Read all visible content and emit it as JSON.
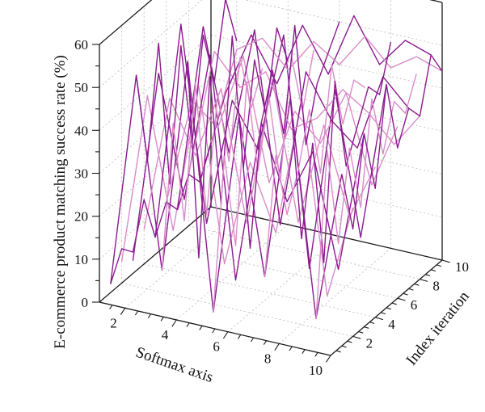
{
  "chart_data": {
    "type": "line",
    "subtype": "3d-line-surface",
    "title": "",
    "xlabel": "Softmax axis",
    "ylabel": "Index iteration",
    "zlabel": "E-commerce product matching success rate (%)",
    "xlim": [
      1,
      10
    ],
    "ylim": [
      0,
      10
    ],
    "zlim": [
      0,
      60
    ],
    "x_ticks": [
      2,
      4,
      6,
      8,
      10
    ],
    "y_ticks": [
      2,
      4,
      6,
      8,
      10
    ],
    "z_ticks": [
      0,
      10,
      20,
      30,
      40,
      50,
      60
    ],
    "grid": true,
    "legend": "none",
    "colors": {
      "dark": "#8b1a8f",
      "light": "#d98cc8",
      "edge": "#1a1a1a",
      "grid": "#b9b9b9"
    },
    "series": [
      {
        "color": "dark",
        "x": [
          1,
          2,
          3,
          4,
          5,
          6,
          7,
          8,
          9,
          10
        ],
        "y": [
          1,
          1,
          1,
          1,
          1,
          1,
          1,
          1,
          1,
          1
        ],
        "z": [
          2,
          52,
          8,
          58,
          1,
          48,
          12,
          55,
          5,
          40
        ]
      },
      {
        "color": "light",
        "x": [
          1,
          2,
          3,
          4,
          5,
          6,
          7,
          8,
          9,
          10
        ],
        "y": [
          2,
          2,
          2,
          2,
          2,
          2,
          2,
          2,
          2,
          2
        ],
        "z": [
          5,
          45,
          15,
          50,
          10,
          35,
          20,
          52,
          8,
          30
        ]
      },
      {
        "color": "dark",
        "x": [
          1,
          2,
          3,
          4,
          5,
          6,
          7,
          8,
          9,
          10
        ],
        "y": [
          3,
          3,
          3,
          3,
          3,
          3,
          3,
          3,
          3,
          3
        ],
        "z": [
          3,
          48,
          20,
          55,
          4,
          42,
          25,
          38,
          12,
          45
        ]
      },
      {
        "color": "light",
        "x": [
          1,
          2,
          3,
          4,
          5,
          6,
          7,
          8,
          9,
          10
        ],
        "y": [
          4,
          4,
          4,
          4,
          4,
          4,
          4,
          4,
          4,
          4
        ],
        "z": [
          8,
          40,
          28,
          45,
          15,
          50,
          18,
          42,
          22,
          35
        ]
      },
      {
        "color": "dark",
        "x": [
          1,
          2,
          3,
          4,
          5,
          6,
          7,
          8,
          9,
          10
        ],
        "y": [
          5,
          5,
          5,
          5,
          5,
          5,
          5,
          5,
          5,
          5
        ],
        "z": [
          4,
          55,
          10,
          40,
          30,
          58,
          5,
          48,
          15,
          52
        ]
      },
      {
        "color": "light",
        "x": [
          1,
          2,
          3,
          4,
          5,
          6,
          7,
          8,
          9,
          10
        ],
        "y": [
          6,
          6,
          6,
          6,
          6,
          6,
          6,
          6,
          6,
          6
        ],
        "z": [
          10,
          35,
          30,
          48,
          20,
          38,
          32,
          45,
          25,
          40
        ]
      },
      {
        "color": "dark",
        "x": [
          1,
          2,
          3,
          4,
          5,
          6,
          7,
          8,
          9,
          10
        ],
        "y": [
          7,
          7,
          7,
          7,
          7,
          7,
          7,
          7,
          7,
          7
        ],
        "z": [
          6,
          50,
          22,
          52,
          8,
          45,
          35,
          30,
          48,
          42
        ]
      },
      {
        "color": "light",
        "x": [
          1,
          2,
          3,
          4,
          5,
          6,
          7,
          8,
          9,
          10
        ],
        "y": [
          8,
          8,
          8,
          8,
          8,
          8,
          8,
          8,
          8,
          8
        ],
        "z": [
          12,
          42,
          35,
          40,
          28,
          32,
          40,
          36,
          30,
          38
        ]
      },
      {
        "color": "dark",
        "x": [
          1,
          2,
          3,
          4,
          5,
          6,
          7,
          8,
          9,
          10
        ],
        "y": [
          9,
          9,
          9,
          9,
          9,
          9,
          9,
          9,
          9,
          9
        ],
        "z": [
          8,
          30,
          45,
          35,
          50,
          40,
          55,
          45,
          52,
          50
        ]
      },
      {
        "color": "light",
        "x": [
          1,
          2,
          3,
          4,
          5,
          6,
          7,
          8,
          9,
          10
        ],
        "y": [
          10,
          10,
          10,
          10,
          10,
          10,
          10,
          10,
          10,
          10
        ],
        "z": [
          15,
          38,
          42,
          36,
          44,
          40,
          48,
          42,
          46,
          44
        ]
      },
      {
        "color": "dark",
        "x": [
          1,
          1,
          1,
          1,
          1,
          1,
          1,
          1,
          1,
          1
        ],
        "y": [
          1,
          2,
          3,
          4,
          5,
          6,
          7,
          8,
          9,
          10
        ],
        "z": [
          2,
          8,
          5,
          15,
          4,
          10,
          6,
          12,
          8,
          15
        ]
      },
      {
        "color": "dark",
        "x": [
          2,
          2,
          2,
          2,
          2,
          2,
          2,
          2,
          2,
          2
        ],
        "y": [
          1,
          2,
          3,
          4,
          5,
          6,
          7,
          8,
          9,
          10
        ],
        "z": [
          52,
          30,
          55,
          20,
          50,
          25,
          48,
          35,
          52,
          40
        ]
      },
      {
        "color": "light",
        "x": [
          3,
          3,
          3,
          3,
          3,
          3,
          3,
          3,
          3,
          3
        ],
        "y": [
          1,
          2,
          3,
          4,
          5,
          6,
          7,
          8,
          9,
          10
        ],
        "z": [
          8,
          40,
          15,
          45,
          12,
          38,
          20,
          42,
          28,
          35
        ]
      },
      {
        "color": "dark",
        "x": [
          4,
          4,
          4,
          4,
          4,
          4,
          4,
          4,
          4,
          4
        ],
        "y": [
          1,
          2,
          3,
          4,
          5,
          6,
          7,
          8,
          9,
          10
        ],
        "z": [
          58,
          10,
          50,
          18,
          55,
          22,
          45,
          30,
          48,
          38
        ]
      },
      {
        "color": "light",
        "x": [
          5,
          5,
          5,
          5,
          5,
          5,
          5,
          5,
          5,
          5
        ],
        "y": [
          1,
          2,
          3,
          4,
          5,
          6,
          7,
          8,
          9,
          10
        ],
        "z": [
          1,
          35,
          12,
          48,
          25,
          40,
          18,
          45,
          30,
          42
        ]
      },
      {
        "color": "dark",
        "x": [
          6,
          6,
          6,
          6,
          6,
          6,
          6,
          6,
          6,
          6
        ],
        "y": [
          1,
          2,
          3,
          4,
          5,
          6,
          7,
          8,
          9,
          10
        ],
        "z": [
          48,
          15,
          42,
          52,
          35,
          58,
          28,
          40,
          45,
          50
        ]
      },
      {
        "color": "light",
        "x": [
          7,
          7,
          7,
          7,
          7,
          7,
          7,
          7,
          7,
          7
        ],
        "y": [
          1,
          2,
          3,
          4,
          5,
          6,
          7,
          8,
          9,
          10
        ],
        "z": [
          12,
          38,
          22,
          30,
          42,
          25,
          48,
          32,
          40,
          36
        ]
      },
      {
        "color": "dark",
        "x": [
          8,
          8,
          8,
          8,
          8,
          8,
          8,
          8,
          8,
          8
        ],
        "y": [
          1,
          2,
          3,
          4,
          5,
          6,
          7,
          8,
          9,
          10
        ],
        "z": [
          55,
          20,
          40,
          10,
          50,
          28,
          35,
          42,
          38,
          48
        ]
      },
      {
        "color": "light",
        "x": [
          9,
          9,
          9,
          9,
          9,
          9,
          9,
          9,
          9,
          9
        ],
        "y": [
          1,
          2,
          3,
          4,
          5,
          6,
          7,
          8,
          9,
          10
        ],
        "z": [
          5,
          42,
          18,
          38,
          22,
          45,
          30,
          40,
          35,
          42
        ]
      },
      {
        "color": "dark",
        "x": [
          10,
          10,
          10,
          10,
          10,
          10,
          10,
          10,
          10,
          10
        ],
        "y": [
          1,
          2,
          3,
          4,
          5,
          6,
          7,
          8,
          9,
          10
        ],
        "z": [
          40,
          25,
          45,
          30,
          52,
          35,
          42,
          38,
          50,
          44
        ]
      }
    ]
  }
}
